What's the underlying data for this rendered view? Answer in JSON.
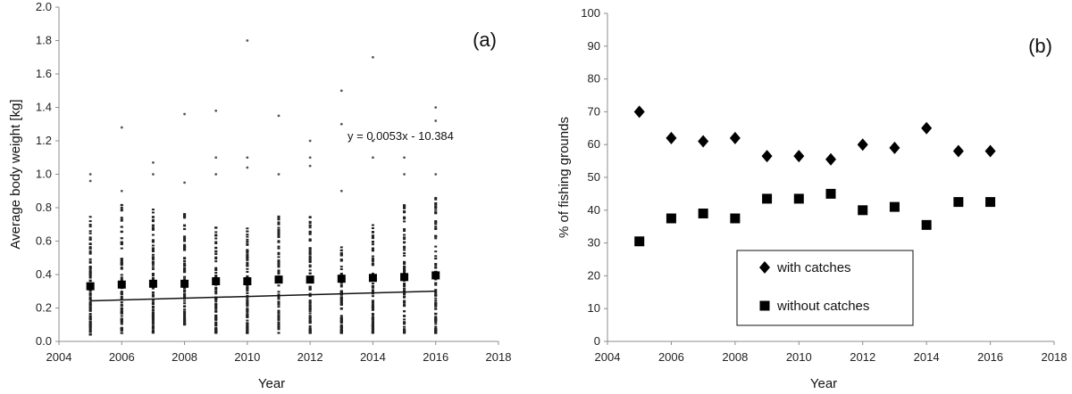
{
  "chart_data": [
    {
      "panel": "(a)",
      "type": "scatter",
      "xlabel": "Year",
      "ylabel": "Average body weight [kg]",
      "xlim": [
        2004,
        2018
      ],
      "ylim": [
        0.0,
        2.0
      ],
      "x_ticks": [
        "2004",
        "2006",
        "2008",
        "2010",
        "2012",
        "2014",
        "2016",
        "2018"
      ],
      "y_ticks": [
        "0.0",
        "0.2",
        "0.4",
        "0.6",
        "0.8",
        "1.0",
        "1.2",
        "1.4",
        "1.6",
        "1.8",
        "2.0"
      ],
      "trend_equation": "y = 0.0053x - 10.384",
      "trendline": {
        "slope": 0.0053,
        "intercept": -10.384,
        "x_range": [
          2005,
          2016
        ]
      },
      "means": {
        "x": [
          2005,
          2006,
          2007,
          2008,
          2009,
          2010,
          2011,
          2012,
          2013,
          2014,
          2015,
          2016
        ],
        "y": [
          0.33,
          0.34,
          0.345,
          0.345,
          0.36,
          0.36,
          0.37,
          0.37,
          0.375,
          0.38,
          0.385,
          0.395
        ]
      },
      "point_spread": {
        "years": [
          2005,
          2006,
          2007,
          2008,
          2009,
          2010,
          2011,
          2012,
          2013,
          2014,
          2015,
          2016
        ],
        "dense_range": [
          [
            0.04,
            0.75
          ],
          [
            0.05,
            0.82
          ],
          [
            0.05,
            0.8
          ],
          [
            0.1,
            0.77
          ],
          [
            0.05,
            0.72
          ],
          [
            0.05,
            0.7
          ],
          [
            0.05,
            0.75
          ],
          [
            0.05,
            0.78
          ],
          [
            0.05,
            0.62
          ],
          [
            0.05,
            0.7
          ],
          [
            0.05,
            0.85
          ],
          [
            0.05,
            0.9
          ]
        ],
        "outliers": [
          [
            1.0,
            0.96
          ],
          [
            1.28,
            0.9
          ],
          [
            1.07,
            1.0
          ],
          [
            1.36,
            0.95
          ],
          [
            1.38,
            1.1,
            1.0
          ],
          [
            1.8,
            1.1,
            1.04
          ],
          [
            1.35,
            1.0
          ],
          [
            1.2,
            1.1,
            1.05
          ],
          [
            1.5,
            1.3,
            0.9
          ],
          [
            1.7,
            1.1,
            1.2
          ],
          [
            1.1,
            1.0
          ],
          [
            1.4,
            1.32,
            1.0
          ]
        ]
      },
      "grid": false
    },
    {
      "panel": "(b)",
      "type": "scatter",
      "xlabel": "Year",
      "ylabel": "% of fishing grounds",
      "xlim": [
        2004,
        2018
      ],
      "ylim": [
        0,
        100
      ],
      "x_ticks": [
        "2004",
        "2006",
        "2008",
        "2010",
        "2012",
        "2014",
        "2016",
        "2018"
      ],
      "y_ticks": [
        "0",
        "10",
        "20",
        "30",
        "40",
        "50",
        "60",
        "70",
        "80",
        "90",
        "100"
      ],
      "x": [
        2005,
        2006,
        2007,
        2008,
        2009,
        2010,
        2011,
        2012,
        2013,
        2014,
        2015,
        2016
      ],
      "series": [
        {
          "name": "with catches",
          "marker": "diamond",
          "values": [
            70,
            62,
            61,
            62,
            56.5,
            56.5,
            55.5,
            60,
            59,
            65,
            58,
            58
          ]
        },
        {
          "name": "without catches",
          "marker": "square",
          "values": [
            30.5,
            37.5,
            39,
            37.5,
            43.5,
            43.5,
            45,
            40,
            41,
            35.5,
            42.5,
            42.5
          ]
        }
      ],
      "legend_position": "bottom-center",
      "grid": false
    }
  ]
}
